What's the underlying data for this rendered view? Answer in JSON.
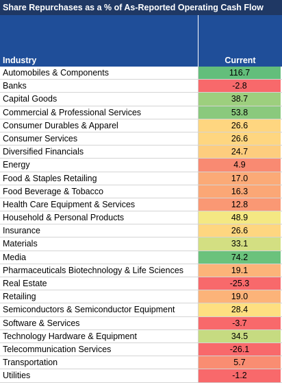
{
  "table": {
    "title": "Share Repurchases as a % of As-Reported Operating Cash Flow",
    "header": [
      "Industry",
      "Current"
    ],
    "rows": [
      [
        "Automobiles & Components",
        "116.7"
      ],
      [
        "Banks",
        "-2.8"
      ],
      [
        "Capital Goods",
        "38.7"
      ],
      [
        "Commercial & Professional Services",
        "53.8"
      ],
      [
        "Consumer Durables & Apparel",
        "26.6"
      ],
      [
        "Consumer Services",
        "26.6"
      ],
      [
        "Diversified Financials",
        "24.7"
      ],
      [
        "Energy",
        "4.9"
      ],
      [
        "Food & Staples Retailing",
        "17.0"
      ],
      [
        "Food Beverage & Tobacco",
        "16.3"
      ],
      [
        "Health Care Equipment & Services",
        "12.8"
      ],
      [
        "Household & Personal Products",
        "48.9"
      ],
      [
        "Insurance",
        "26.6"
      ],
      [
        "Materials",
        "33.1"
      ],
      [
        "Media",
        "74.2"
      ],
      [
        "Pharmaceuticals Biotechnology & Life Sciences",
        "19.1"
      ],
      [
        "Real Estate",
        "-25.3"
      ],
      [
        "Retailing",
        "19.0"
      ],
      [
        "Semiconductors & Semiconductor Equipment",
        "28.4"
      ],
      [
        "Software & Services",
        "-3.7"
      ],
      [
        "Technology Hardware & Equipment",
        "34.5"
      ],
      [
        "Telecommunication Services",
        "-26.1"
      ],
      [
        "Transportation",
        "5.7"
      ],
      [
        "Utilities",
        "-1.2"
      ]
    ],
    "cell_colors": [
      "#63be7b",
      "#f8696b",
      "#9dcf7e",
      "#8ac97d",
      "#fed680",
      "#fed680",
      "#fdcd7e",
      "#f98a72",
      "#fbaa77",
      "#fba776",
      "#fa9874",
      "#f4e883",
      "#fed680",
      "#d3df82",
      "#6bc27c",
      "#fcb479",
      "#f8696b",
      "#fcb379",
      "#fedf81",
      "#f8696b",
      "#c6db81",
      "#f8696b",
      "#f98d72",
      "#f8696b"
    ]
  }
}
